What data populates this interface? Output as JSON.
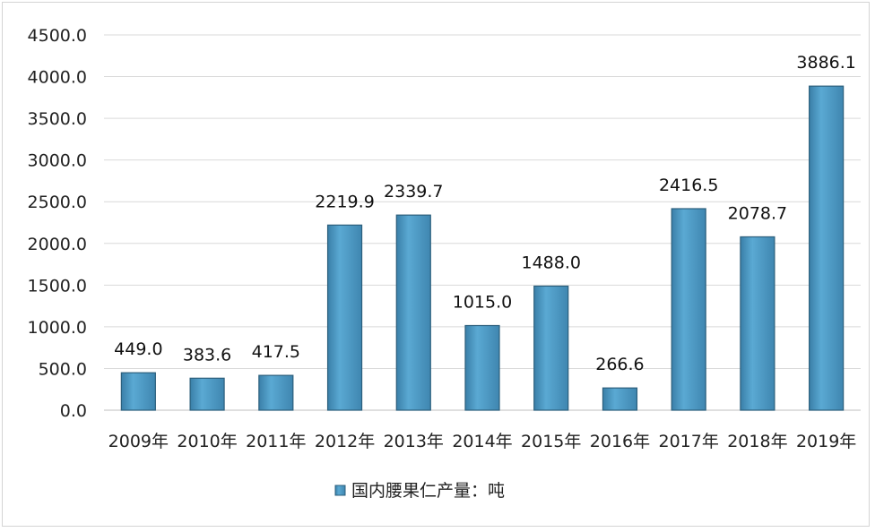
{
  "chart_data": {
    "type": "bar",
    "categories": [
      "2009年",
      "2010年",
      "2011年",
      "2012年",
      "2013年",
      "2014年",
      "2015年",
      "2016年",
      "2017年",
      "2018年",
      "2019年"
    ],
    "series": [
      {
        "name": "国内腰果仁产量：吨",
        "values": [
          449.0,
          383.6,
          417.5,
          2219.9,
          2339.7,
          1015.0,
          1488.0,
          266.6,
          2416.5,
          2078.7,
          3886.1
        ],
        "labels": [
          "449.0",
          "383.6",
          "417.5",
          "2219.9",
          "2339.7",
          "1015.0",
          "1488.0",
          "266.6",
          "2416.5",
          "2078.7",
          "3886.1"
        ]
      }
    ],
    "yticks": [
      "0.0",
      "500.0",
      "1000.0",
      "1500.0",
      "2000.0",
      "2500.0",
      "3000.0",
      "3500.0",
      "4000.0",
      "4500.0"
    ],
    "ylim": [
      0,
      4500
    ],
    "grid": true,
    "legend_position": "bottom-center",
    "colors": {
      "bar_fill": "#4f9dc6",
      "bar_edge": "#2c5f7c",
      "grid": "#d9d9d9"
    }
  }
}
